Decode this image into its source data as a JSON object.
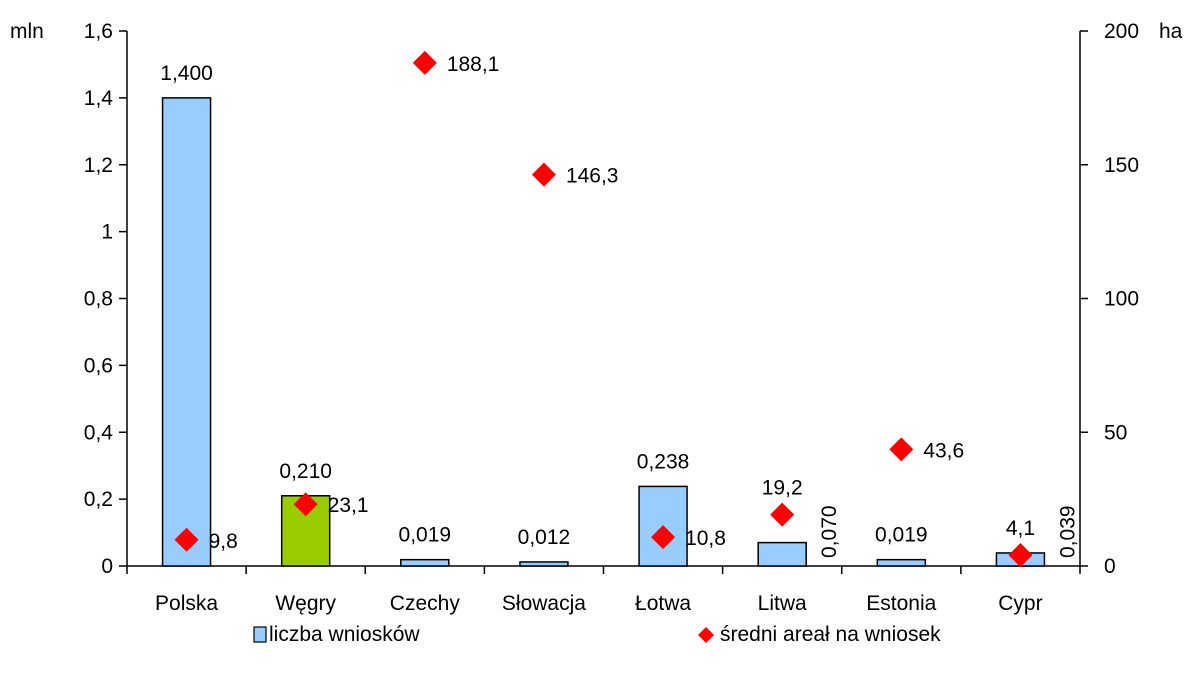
{
  "chart_data": {
    "type": "bar",
    "categories": [
      "Polska",
      "Węgry",
      "Czechy",
      "Słowacja",
      "Łotwa",
      "Litwa",
      "Estonia",
      "Cypr"
    ],
    "series": [
      {
        "name": "liczba wniosków",
        "axis": "left",
        "type": "bar",
        "values": [
          1.4,
          0.21,
          0.019,
          0.012,
          0.238,
          0.07,
          0.019,
          0.039
        ],
        "labels": [
          "1,400",
          "0,210",
          "0,019",
          "0,012",
          "0,238",
          "0,070",
          "0,019",
          "0,039"
        ],
        "label_rotated": [
          false,
          false,
          false,
          false,
          false,
          true,
          false,
          true
        ],
        "color": "#99ccff",
        "highlight_index": 1,
        "highlight_color": "#99cc00"
      },
      {
        "name": "średni areał na wniosek",
        "axis": "right",
        "type": "scatter",
        "marker": "diamond",
        "values": [
          9.8,
          23.1,
          188.1,
          146.3,
          10.8,
          19.2,
          43.6,
          4.1
        ],
        "labels": [
          "9,8",
          "23,1",
          "188,1",
          "146,3",
          "10,8",
          "19,2",
          "43,6",
          "4,1"
        ],
        "label_position": [
          "right",
          "right",
          "right",
          "right",
          "right",
          "above",
          "right",
          "above"
        ],
        "color": "#ff0000"
      }
    ],
    "y_left": {
      "unit": "mln",
      "range": [
        0,
        1.6
      ],
      "ticks": [
        0,
        0.2,
        0.4,
        0.6,
        0.8,
        1,
        1.2,
        1.4,
        1.6
      ],
      "tick_labels": [
        "0",
        "0,2",
        "0,4",
        "0,6",
        "0,8",
        "1",
        "1,2",
        "1,4",
        "1,6"
      ]
    },
    "y_right": {
      "unit": "ha",
      "range": [
        0,
        200
      ],
      "ticks": [
        0,
        50,
        100,
        150,
        200
      ],
      "tick_labels": [
        "0",
        "50",
        "100",
        "150",
        "200"
      ]
    },
    "grid": false,
    "legend": "bottom"
  }
}
